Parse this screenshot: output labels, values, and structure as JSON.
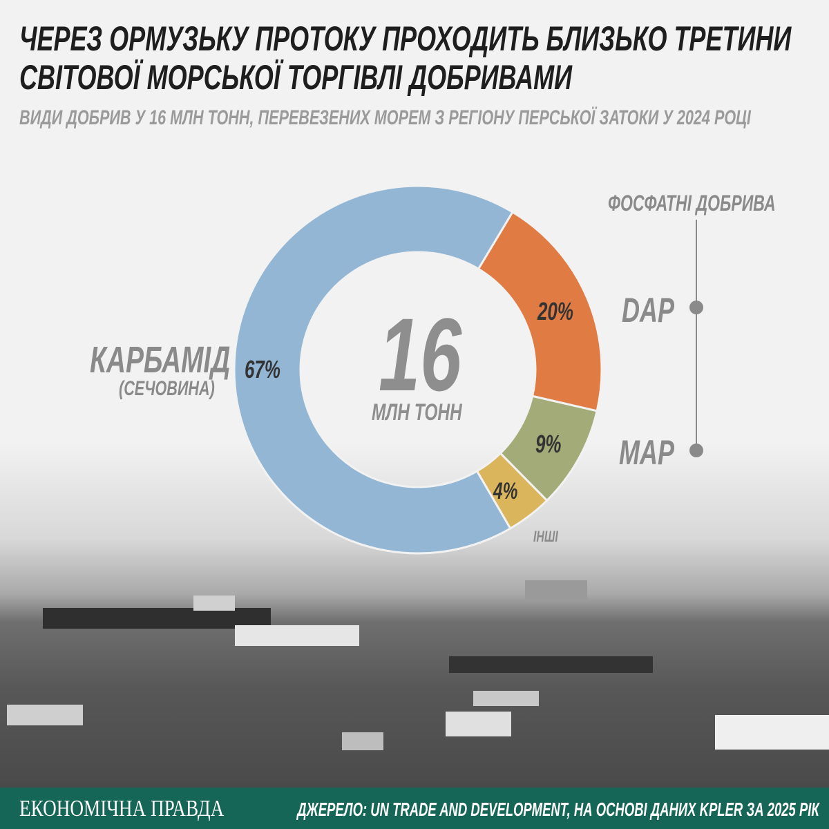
{
  "title_lines": [
    "ЧЕРЕЗ ОРМУЗЬКУ ПРОТОКУ ПРОХОДИТЬ БЛИЗЬКО ТРЕТИНИ",
    "СВІТОВОЇ МОРСЬКОЇ ТОРГІВЛІ ДОБРИВАМИ"
  ],
  "subtitle": "ВИДИ ДОБРИВ У 16 МЛН ТОНН, ПЕРЕВЕЗЕНИХ МОРЕМ З РЕГІОНУ ПЕРСЬКОЇ ЗАТОКИ У 2024 РОЦІ",
  "chart_data": {
    "type": "pie",
    "donut": true,
    "center_value": "16",
    "center_unit": "МЛН ТОНН",
    "slices": [
      {
        "name": "DAP",
        "value": 20,
        "label": "20%",
        "color": "#e07b43"
      },
      {
        "name": "MAP",
        "value": 9,
        "label": "9%",
        "color": "#a3ab78"
      },
      {
        "name": "ІНШІ",
        "value": 4,
        "label": "4%",
        "color": "#dbb55c"
      },
      {
        "name": "КАРБАМІД",
        "note": "(СЕЧОВИНА)",
        "value": 67,
        "label": "67%",
        "color": "#93b6d4"
      }
    ],
    "group_label": "ФОСФАТНІ ДОБРИВА"
  },
  "footer": {
    "brand": "ЕКОНОМІЧНА ПРАВДА",
    "source": "ДЖЕРЕЛО: UN TRADE AND DEVELOPMENT, НА ОСНОВІ ДАНИХ KPLER ЗА 2025 РІК",
    "color": "#166657"
  }
}
